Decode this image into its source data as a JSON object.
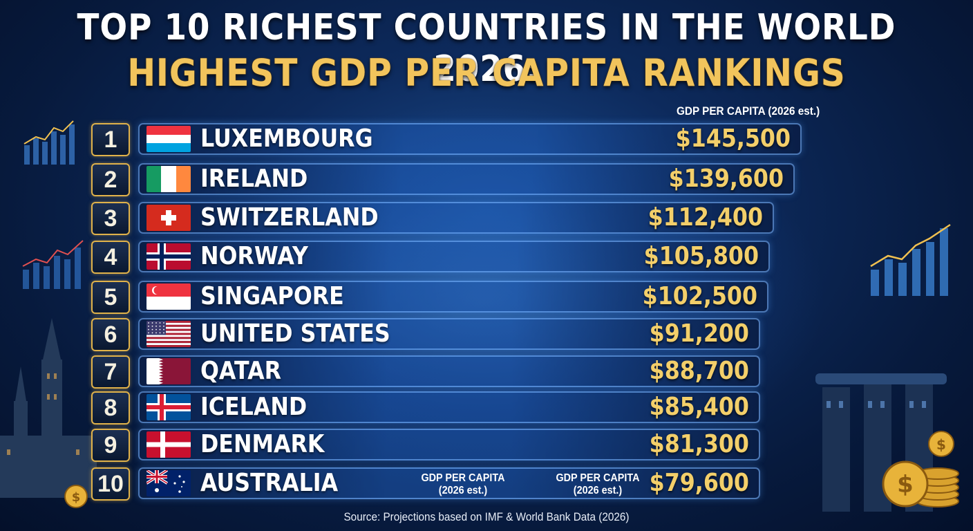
{
  "header": {
    "title_line1": "TOP 10 RICHEST COUNTRIES IN THE WORLD 2026:",
    "title_line2": "HIGHEST GDP PER CAPITA RANKINGS"
  },
  "column_header": "GDP PER CAPITA (2026 est.)",
  "bottom_labels": {
    "label_a": "GDP PER CAPITA",
    "label_a_sub": "(2026 est.)",
    "label_b": "GDP PER CAPITA",
    "label_b_sub": "(2026 est.)"
  },
  "source": "Source: Projections based on IMF & World Bank Data (2026)",
  "colors": {
    "gold": "#f3cf6a",
    "title_gold": "#f2c45c",
    "rank_border": "#e0b24a",
    "background": "#0d2a5c"
  },
  "chart_data": {
    "type": "table",
    "title": "TOP 10 RICHEST COUNTRIES IN THE WORLD 2026: HIGHEST GDP PER CAPITA RANKINGS",
    "columns": [
      "Rank",
      "Country",
      "GDP PER CAPITA (2026 est.)"
    ],
    "rows": [
      {
        "rank": "1",
        "country": "LUXEMBOURG",
        "flag": "luxembourg-flag",
        "value_label": "$145,500",
        "value": 145500
      },
      {
        "rank": "2",
        "country": "IRELAND",
        "flag": "ireland-flag",
        "value_label": "$139,600",
        "value": 139600
      },
      {
        "rank": "3",
        "country": "SWITZERLAND",
        "flag": "switzerland-flag",
        "value_label": "$112,400",
        "value": 112400
      },
      {
        "rank": "4",
        "country": "NORWAY",
        "flag": "norway-flag",
        "value_label": "$105,800",
        "value": 105800
      },
      {
        "rank": "5",
        "country": "SINGAPORE",
        "flag": "singapore-flag",
        "value_label": "$102,500",
        "value": 102500
      },
      {
        "rank": "6",
        "country": "UNITED STATES",
        "flag": "usa-flag",
        "value_label": "$91,200",
        "value": 91200
      },
      {
        "rank": "7",
        "country": "QATAR",
        "flag": "qatar-flag",
        "value_label": "$88,700",
        "value": 88700
      },
      {
        "rank": "8",
        "country": "ICELAND",
        "flag": "iceland-flag",
        "value_label": "$85,400",
        "value": 85400
      },
      {
        "rank": "9",
        "country": "DENMARK",
        "flag": "denmark-flag",
        "value_label": "$81,300",
        "value": 81300
      },
      {
        "rank": "10",
        "country": "AUSTRALIA",
        "flag": "australia-flag",
        "value_label": "$79,600",
        "value": 79600
      }
    ]
  }
}
